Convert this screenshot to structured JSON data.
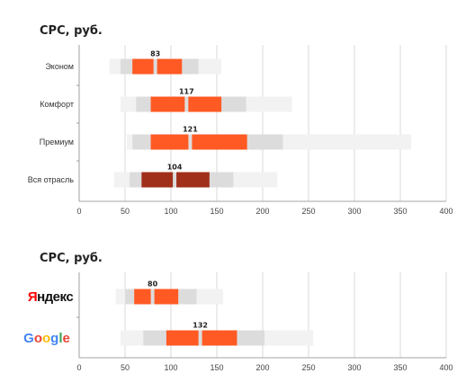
{
  "chart_data": [
    {
      "type": "box",
      "title": "CPC, руб.",
      "xlim": [
        0,
        400
      ],
      "x_ticks": [
        "0",
        "50",
        "100",
        "150",
        "200",
        "250",
        "300",
        "350",
        "400"
      ],
      "grid": true,
      "colors": {
        "outer": "#f2f2f2",
        "inner": "#dcdcdc",
        "core": "#ff5a24",
        "highlight": "#a0301a"
      },
      "categories": [
        {
          "label": "Эконом",
          "range_outer": [
            33,
            155
          ],
          "range_inner": [
            45,
            130
          ],
          "core": [
            58,
            112
          ],
          "median": 83,
          "median_label": "83",
          "highlight": false
        },
        {
          "label": "Комфорт",
          "range_outer": [
            45,
            232
          ],
          "range_inner": [
            62,
            182
          ],
          "core": [
            78,
            155
          ],
          "median": 117,
          "median_label": "117",
          "highlight": false
        },
        {
          "label": "Премиум",
          "range_outer": [
            52,
            362
          ],
          "range_inner": [
            58,
            222
          ],
          "core": [
            78,
            183
          ],
          "median": 121,
          "median_label": "121",
          "highlight": false
        },
        {
          "label": "Вся отрасль",
          "range_outer": [
            38,
            216
          ],
          "range_inner": [
            55,
            168
          ],
          "core": [
            68,
            142
          ],
          "median": 104,
          "median_label": "104",
          "highlight": true
        }
      ]
    },
    {
      "type": "box",
      "title": "CPC, руб.",
      "xlim": [
        0,
        400
      ],
      "x_ticks": [
        "0",
        "50",
        "100",
        "150",
        "200",
        "250",
        "300",
        "350",
        "400"
      ],
      "grid": true,
      "colors": {
        "outer": "#f2f2f2",
        "inner": "#dcdcdc",
        "core": "#ff5a24"
      },
      "categories": [
        {
          "label": "Яндекс",
          "logo": "yandex",
          "range_outer": [
            40,
            157
          ],
          "range_inner": [
            50,
            128
          ],
          "core": [
            60,
            108
          ],
          "median": 80,
          "median_label": "80"
        },
        {
          "label": "Google",
          "logo": "google",
          "range_outer": [
            45,
            255
          ],
          "range_inner": [
            70,
            202
          ],
          "core": [
            95,
            172
          ],
          "median": 132,
          "median_label": "132"
        }
      ]
    }
  ]
}
